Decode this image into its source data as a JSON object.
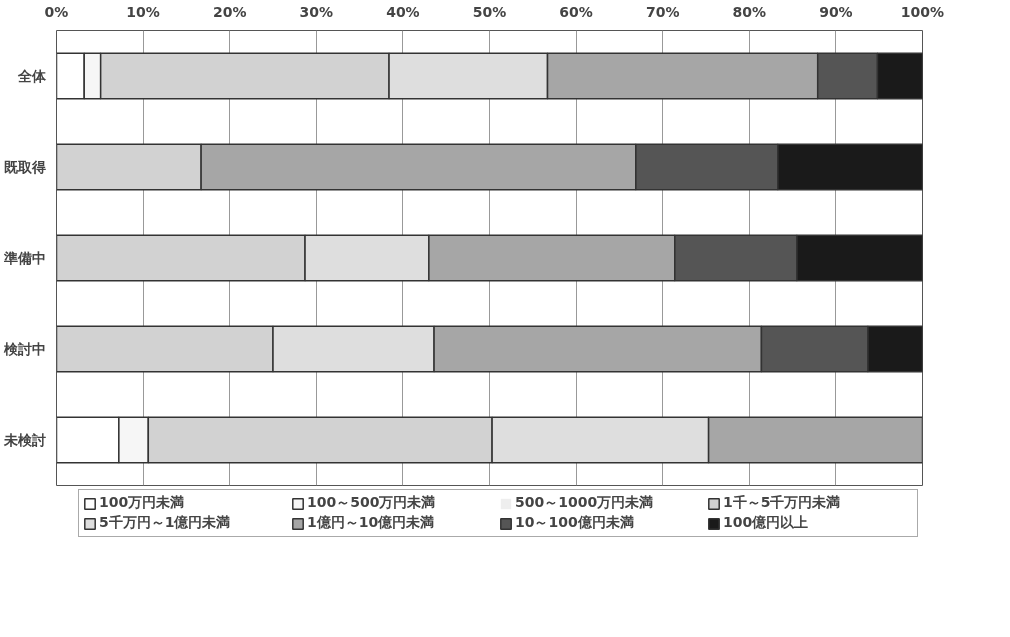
{
  "chart_data": {
    "type": "bar",
    "orientation": "horizontal",
    "stacked": true,
    "categories": [
      "全体",
      "既取得",
      "準備中",
      "検討中",
      "未検討"
    ],
    "series": [
      {
        "name": "100万円未満",
        "color": "#ffffff",
        "values": [
          3.2,
          0,
          0,
          0,
          7.2
        ]
      },
      {
        "name": "100～500万円未満",
        "color": "#f6f6f6",
        "values": [
          1.9,
          0,
          0,
          0,
          3.4
        ]
      },
      {
        "name": "500～1000万円未満",
        "color": "#eeeeee",
        "values": [
          0,
          0,
          0,
          0,
          0
        ]
      },
      {
        "name": "1千～5千万円未満",
        "color": "#d2d2d2",
        "values": [
          33.3,
          16.7,
          28.7,
          25.0,
          39.7
        ]
      },
      {
        "name": "5千万円～1億円未満",
        "color": "#dedede",
        "values": [
          18.3,
          0,
          14.3,
          18.6,
          25.0
        ]
      },
      {
        "name": "1億円～10億円未満",
        "color": "#a6a6a6",
        "values": [
          31.2,
          50.2,
          28.4,
          37.8,
          24.7
        ]
      },
      {
        "name": "10～100億円未満",
        "color": "#555555",
        "values": [
          6.9,
          16.4,
          14.1,
          12.3,
          0
        ]
      },
      {
        "name": "100億円以上",
        "color": "#1a1a1a",
        "values": [
          5.2,
          16.7,
          14.5,
          6.3,
          0
        ]
      }
    ],
    "xlim": [
      0,
      100
    ],
    "xticks": [
      {
        "value": 0,
        "label": "0%"
      },
      {
        "value": 10,
        "label": "10%"
      },
      {
        "value": 20,
        "label": "20%"
      },
      {
        "value": 30,
        "label": "30%"
      },
      {
        "value": 40,
        "label": "40%"
      },
      {
        "value": 50,
        "label": "50%"
      },
      {
        "value": 60,
        "label": "60%"
      },
      {
        "value": 70,
        "label": "70%"
      },
      {
        "value": 80,
        "label": "80%"
      },
      {
        "value": 90,
        "label": "90%"
      },
      {
        "value": 100,
        "label": "100%"
      }
    ],
    "grid": "x",
    "legend": "bottom"
  }
}
